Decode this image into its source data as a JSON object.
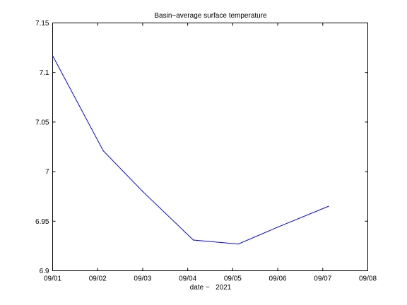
{
  "chart_data": {
    "type": "line",
    "title": "Basin−average surface temperature",
    "xlabel": "date −   2021",
    "ylabel": "",
    "x_tick_labels": [
      "09/01",
      "09/02",
      "09/03",
      "09/04",
      "09/05",
      "09/06",
      "09/07",
      "09/08"
    ],
    "y_tick_labels": [
      "6.9",
      "6.95",
      "7",
      "7.05",
      "7.1",
      "7.15"
    ],
    "xlim": [
      "2021-09-01",
      "2021-09-08"
    ],
    "ylim": [
      6.9,
      7.15
    ],
    "grid": false,
    "series": [
      {
        "color": "#0000ff",
        "x": [
          "2021-09-01T00:00",
          "2021-09-02T03:00",
          "2021-09-03T00:00",
          "2021-09-04T03:00",
          "2021-09-05T03:00",
          "2021-09-06T00:00",
          "2021-09-07T03:00"
        ],
        "values": [
          7.117,
          7.021,
          6.98,
          6.931,
          6.927,
          6.944,
          6.965
        ]
      }
    ]
  }
}
